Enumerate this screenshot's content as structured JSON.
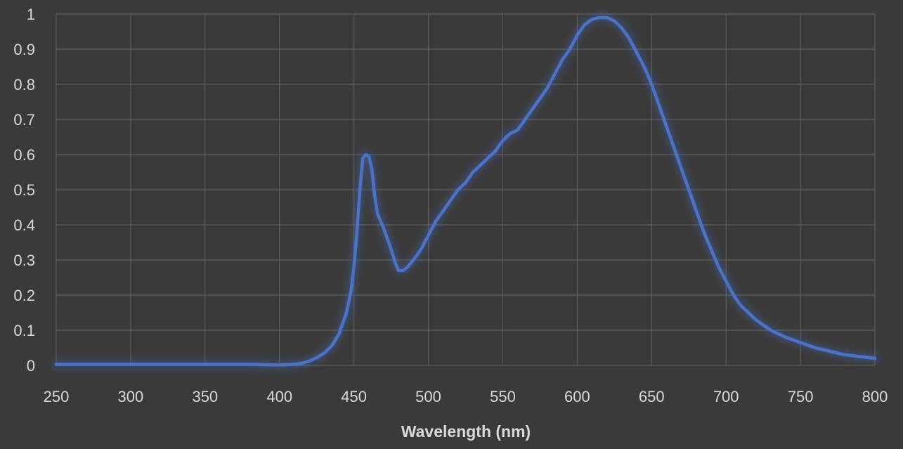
{
  "chart_data": {
    "type": "line",
    "title": "",
    "xlabel": "Wavelength (nm)",
    "ylabel": "",
    "xlim": [
      250,
      800
    ],
    "ylim": [
      0,
      1
    ],
    "x_ticks": [
      "250",
      "300",
      "350",
      "400",
      "450",
      "500",
      "550",
      "600",
      "650",
      "700",
      "750",
      "800"
    ],
    "y_ticks": [
      "0",
      "0.1",
      "0.2",
      "0.3",
      "0.4",
      "0.5",
      "0.6",
      "0.7",
      "0.8",
      "0.9",
      "1"
    ],
    "grid": true,
    "legend": "none",
    "colors": {
      "background": "#3a3a3a",
      "grid": "#5d5d5d",
      "text": "#d9d9d9",
      "line": "#4a72c8"
    },
    "series": [
      {
        "x": [
          250,
          300,
          350,
          380,
          390,
          400,
          410,
          415,
          420,
          425,
          430,
          435,
          440,
          445,
          448,
          450,
          452,
          454,
          456,
          458,
          460,
          462,
          464,
          466,
          470,
          475,
          478,
          480,
          483,
          486,
          490,
          495,
          500,
          505,
          510,
          515,
          520,
          525,
          530,
          535,
          540,
          545,
          550,
          555,
          560,
          565,
          570,
          575,
          580,
          585,
          590,
          595,
          600,
          605,
          610,
          615,
          620,
          625,
          630,
          635,
          640,
          645,
          650,
          655,
          660,
          665,
          670,
          675,
          680,
          685,
          690,
          695,
          700,
          705,
          710,
          720,
          730,
          740,
          750,
          760,
          770,
          780,
          790,
          800
        ],
        "y": [
          0.003,
          0.003,
          0.003,
          0.003,
          0.002,
          0.001,
          0.003,
          0.006,
          0.012,
          0.022,
          0.035,
          0.055,
          0.09,
          0.15,
          0.21,
          0.28,
          0.38,
          0.5,
          0.59,
          0.6,
          0.595,
          0.56,
          0.48,
          0.43,
          0.39,
          0.33,
          0.29,
          0.27,
          0.27,
          0.28,
          0.3,
          0.33,
          0.37,
          0.41,
          0.44,
          0.47,
          0.5,
          0.52,
          0.55,
          0.57,
          0.59,
          0.61,
          0.64,
          0.66,
          0.67,
          0.7,
          0.73,
          0.76,
          0.79,
          0.83,
          0.87,
          0.9,
          0.94,
          0.97,
          0.985,
          0.99,
          0.99,
          0.98,
          0.96,
          0.93,
          0.89,
          0.85,
          0.8,
          0.74,
          0.68,
          0.62,
          0.56,
          0.5,
          0.44,
          0.38,
          0.33,
          0.28,
          0.24,
          0.2,
          0.17,
          0.13,
          0.1,
          0.08,
          0.065,
          0.05,
          0.04,
          0.03,
          0.025,
          0.02
        ]
      }
    ]
  }
}
